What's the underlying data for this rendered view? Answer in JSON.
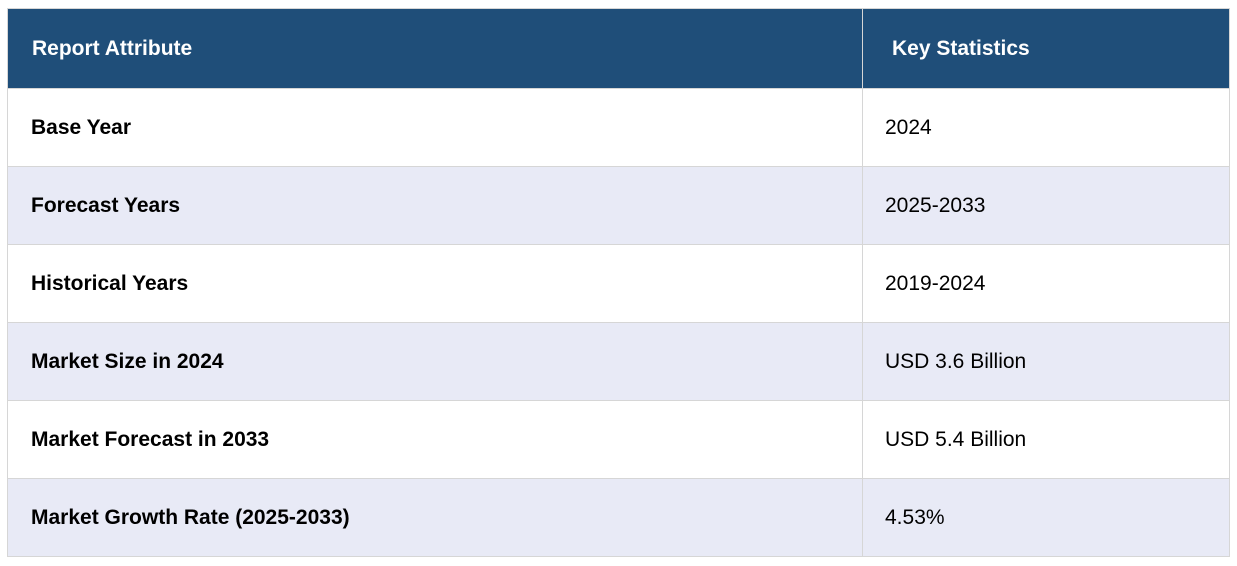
{
  "header": {
    "attribute_label": "Report Attribute",
    "statistics_label": "Key Statistics"
  },
  "rows": [
    {
      "attribute": "Base Year",
      "value": "2024"
    },
    {
      "attribute": "Forecast Years",
      "value": "2025-2033"
    },
    {
      "attribute": "Historical Years",
      "value": "2019-2024"
    },
    {
      "attribute": "Market Size in 2024",
      "value": "USD 3.6 Billion"
    },
    {
      "attribute": "Market Forecast in 2033",
      "value": "USD 5.4 Billion"
    },
    {
      "attribute": "Market Growth Rate (2025-2033)",
      "value": "4.53%"
    }
  ],
  "colors": {
    "header_bg": "#1f4e79",
    "header_text": "#ffffff",
    "alt_row_bg": "#e8eaf6",
    "border": "#d6d6d6"
  }
}
